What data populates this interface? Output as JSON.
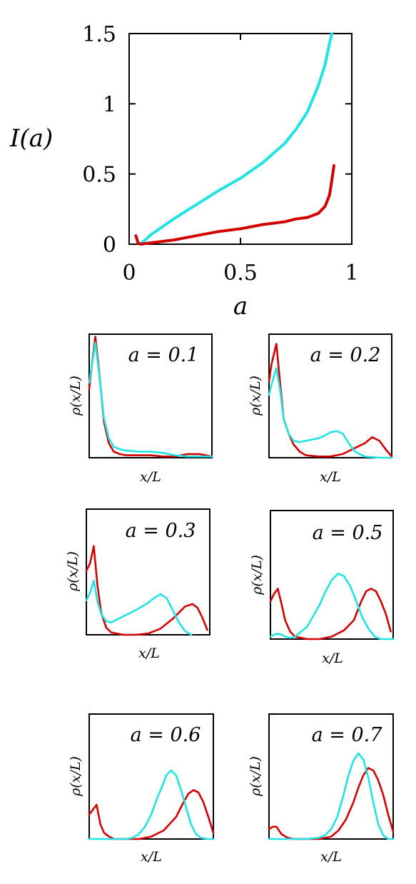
{
  "colors": {
    "red": "#d40000",
    "cyan": "#22e3e3",
    "axis": "#000000"
  },
  "chart_data": [
    {
      "type": "line",
      "title": "",
      "xlabel": "a",
      "ylabel": "I(a)",
      "xlim": [
        0,
        1
      ],
      "ylim": [
        0,
        1.5
      ],
      "xticks": [
        0,
        0.5,
        1
      ],
      "xtick_labels": [
        "0",
        "0.5",
        "1"
      ],
      "yticks": [
        0,
        0.5,
        1,
        1.5
      ],
      "ytick_labels": [
        "0",
        "0.5",
        "1",
        "1.5"
      ],
      "grid": false,
      "series": [
        {
          "color": "#22e3e3",
          "x": [
            0.05,
            0.1,
            0.2,
            0.3,
            0.4,
            0.5,
            0.6,
            0.7,
            0.75,
            0.8,
            0.85,
            0.88,
            0.9,
            0.91
          ],
          "y": [
            0.0,
            0.07,
            0.18,
            0.28,
            0.38,
            0.47,
            0.58,
            0.72,
            0.82,
            0.94,
            1.13,
            1.28,
            1.43,
            1.5
          ]
        },
        {
          "color": "#d40000",
          "x": [
            0.03,
            0.04,
            0.05,
            0.1,
            0.2,
            0.3,
            0.4,
            0.5,
            0.6,
            0.7,
            0.75,
            0.8,
            0.85,
            0.88,
            0.9,
            0.91,
            0.92
          ],
          "y": [
            0.06,
            0.01,
            0.0,
            0.01,
            0.03,
            0.06,
            0.09,
            0.11,
            0.14,
            0.16,
            0.18,
            0.19,
            0.22,
            0.27,
            0.35,
            0.45,
            0.56
          ]
        }
      ]
    },
    {
      "type": "line",
      "title": "a = 0.1",
      "xlabel": "x/L",
      "ylabel": "ρ(x/L)",
      "xlim": [
        0,
        1
      ],
      "ylim": [
        0,
        1
      ],
      "series": [
        {
          "color": "#d40000",
          "x": [
            0,
            0.02,
            0.05,
            0.08,
            0.12,
            0.16,
            0.2,
            0.25,
            0.3,
            0.4,
            0.5,
            0.6,
            0.7,
            0.8,
            0.9,
            1.0
          ],
          "y": [
            0.57,
            0.75,
            1.0,
            0.72,
            0.3,
            0.12,
            0.05,
            0.03,
            0.02,
            0.02,
            0.02,
            0.01,
            0.01,
            0.03,
            0.03,
            0.01
          ]
        },
        {
          "color": "#22e3e3",
          "x": [
            0,
            0.02,
            0.05,
            0.08,
            0.12,
            0.16,
            0.2,
            0.25,
            0.3,
            0.4,
            0.5,
            0.6,
            0.7,
            0.8,
            0.9,
            1.0
          ],
          "y": [
            0.62,
            0.75,
            0.95,
            0.7,
            0.33,
            0.16,
            0.09,
            0.07,
            0.06,
            0.05,
            0.05,
            0.04,
            0.02,
            0.01,
            0.01,
            0.01
          ]
        }
      ]
    },
    {
      "type": "line",
      "title": "a = 0.2",
      "xlabel": "x/L",
      "ylabel": "ρ(x/L)",
      "xlim": [
        0,
        1
      ],
      "ylim": [
        0,
        1
      ],
      "series": [
        {
          "color": "#d40000",
          "x": [
            0,
            0.02,
            0.06,
            0.09,
            0.12,
            0.16,
            0.2,
            0.25,
            0.3,
            0.4,
            0.5,
            0.6,
            0.7,
            0.78,
            0.84,
            0.9,
            0.95,
            1.0
          ],
          "y": [
            0.63,
            0.77,
            0.94,
            0.62,
            0.32,
            0.2,
            0.11,
            0.05,
            0.02,
            0.01,
            0.01,
            0.03,
            0.08,
            0.12,
            0.17,
            0.14,
            0.07,
            0.01
          ]
        },
        {
          "color": "#22e3e3",
          "x": [
            0,
            0.02,
            0.06,
            0.09,
            0.12,
            0.16,
            0.2,
            0.25,
            0.3,
            0.4,
            0.45,
            0.5,
            0.55,
            0.6,
            0.65,
            0.7,
            0.78,
            0.9,
            1.0
          ],
          "y": [
            0.52,
            0.6,
            0.74,
            0.56,
            0.32,
            0.2,
            0.14,
            0.13,
            0.14,
            0.16,
            0.18,
            0.21,
            0.22,
            0.2,
            0.12,
            0.05,
            0.01,
            0.0,
            0.0
          ]
        }
      ]
    },
    {
      "type": "line",
      "title": "a = 0.3",
      "xlabel": "x/L",
      "ylabel": "ρ(x/L)",
      "xlim": [
        0,
        1
      ],
      "ylim": [
        0,
        1
      ],
      "series": [
        {
          "color": "#d40000",
          "x": [
            0,
            0.03,
            0.06,
            0.09,
            0.12,
            0.16,
            0.2,
            0.3,
            0.4,
            0.5,
            0.6,
            0.7,
            0.8,
            0.86,
            0.9,
            0.94,
            0.98
          ],
          "y": [
            0.52,
            0.58,
            0.72,
            0.4,
            0.18,
            0.06,
            0.02,
            0.0,
            0.0,
            0.01,
            0.05,
            0.13,
            0.23,
            0.25,
            0.22,
            0.14,
            0.04
          ]
        },
        {
          "color": "#22e3e3",
          "x": [
            0,
            0.03,
            0.06,
            0.09,
            0.12,
            0.16,
            0.2,
            0.3,
            0.4,
            0.5,
            0.55,
            0.6,
            0.65,
            0.7,
            0.75,
            0.8,
            0.85
          ],
          "y": [
            0.28,
            0.34,
            0.44,
            0.27,
            0.17,
            0.11,
            0.1,
            0.15,
            0.2,
            0.26,
            0.3,
            0.33,
            0.3,
            0.2,
            0.1,
            0.03,
            0.0
          ]
        }
      ]
    },
    {
      "type": "line",
      "title": "a = 0.5",
      "xlabel": "x/L",
      "ylabel": "ρ(x/L)",
      "xlim": [
        0,
        1
      ],
      "ylim": [
        0,
        1
      ],
      "series": [
        {
          "color": "#d40000",
          "x": [
            0,
            0.03,
            0.06,
            0.09,
            0.12,
            0.16,
            0.2,
            0.3,
            0.4,
            0.5,
            0.6,
            0.68,
            0.74,
            0.78,
            0.82,
            0.86,
            0.9,
            0.94,
            0.98
          ],
          "y": [
            0.3,
            0.36,
            0.4,
            0.28,
            0.15,
            0.06,
            0.02,
            0.0,
            0.0,
            0.02,
            0.07,
            0.15,
            0.3,
            0.38,
            0.4,
            0.38,
            0.3,
            0.2,
            0.06
          ]
        },
        {
          "color": "#22e3e3",
          "x": [
            0,
            0.04,
            0.08,
            0.12,
            0.16,
            0.2,
            0.3,
            0.4,
            0.45,
            0.5,
            0.55,
            0.6,
            0.65,
            0.7,
            0.75,
            0.8,
            0.85,
            0.9,
            0.95,
            1.0
          ],
          "y": [
            0.02,
            0.04,
            0.04,
            0.02,
            0.01,
            0.02,
            0.1,
            0.27,
            0.38,
            0.47,
            0.52,
            0.5,
            0.42,
            0.3,
            0.17,
            0.08,
            0.02,
            0.0,
            0.0,
            0.0
          ]
        }
      ]
    },
    {
      "type": "line",
      "title": "a = 0.6",
      "xlabel": "x/L",
      "ylabel": "ρ(x/L)",
      "xlim": [
        0,
        1
      ],
      "ylim": [
        0,
        1
      ],
      "series": [
        {
          "color": "#d40000",
          "x": [
            0,
            0.03,
            0.06,
            0.09,
            0.12,
            0.16,
            0.2,
            0.3,
            0.4,
            0.5,
            0.6,
            0.7,
            0.76,
            0.8,
            0.84,
            0.88,
            0.92,
            0.96,
            1.0
          ],
          "y": [
            0.2,
            0.24,
            0.28,
            0.12,
            0.05,
            0.02,
            0.0,
            0.0,
            0.0,
            0.02,
            0.07,
            0.18,
            0.3,
            0.37,
            0.4,
            0.38,
            0.3,
            0.18,
            0.05
          ]
        },
        {
          "color": "#22e3e3",
          "x": [
            0,
            0.1,
            0.2,
            0.3,
            0.35,
            0.4,
            0.45,
            0.5,
            0.55,
            0.6,
            0.62,
            0.66,
            0.7,
            0.74,
            0.78,
            0.82,
            0.86,
            0.9,
            0.95,
            1.0
          ],
          "y": [
            0.0,
            0.0,
            0.0,
            0.0,
            0.01,
            0.04,
            0.1,
            0.2,
            0.34,
            0.46,
            0.52,
            0.56,
            0.52,
            0.4,
            0.26,
            0.12,
            0.04,
            0.01,
            0.0,
            0.0
          ]
        }
      ]
    },
    {
      "type": "line",
      "title": "a = 0.7",
      "xlabel": "x/L",
      "ylabel": "ρ(x/L)",
      "xlim": [
        0,
        1
      ],
      "ylim": [
        0,
        1
      ],
      "series": [
        {
          "color": "#d40000",
          "x": [
            0,
            0.03,
            0.06,
            0.1,
            0.15,
            0.2,
            0.3,
            0.4,
            0.5,
            0.56,
            0.62,
            0.68,
            0.72,
            0.76,
            0.8,
            0.84,
            0.88,
            0.92,
            0.96,
            1.0
          ],
          "y": [
            0.08,
            0.1,
            0.1,
            0.04,
            0.01,
            0.0,
            0.0,
            0.0,
            0.02,
            0.07,
            0.16,
            0.3,
            0.42,
            0.52,
            0.58,
            0.56,
            0.48,
            0.36,
            0.2,
            0.06
          ]
        },
        {
          "color": "#22e3e3",
          "x": [
            0,
            0.2,
            0.3,
            0.4,
            0.45,
            0.5,
            0.55,
            0.6,
            0.64,
            0.68,
            0.72,
            0.76,
            0.8,
            0.84,
            0.88,
            0.92,
            0.96,
            1.0
          ],
          "y": [
            0.0,
            0.0,
            0.0,
            0.01,
            0.03,
            0.08,
            0.18,
            0.36,
            0.52,
            0.64,
            0.7,
            0.65,
            0.5,
            0.3,
            0.12,
            0.03,
            0.0,
            0.0
          ]
        }
      ]
    }
  ]
}
